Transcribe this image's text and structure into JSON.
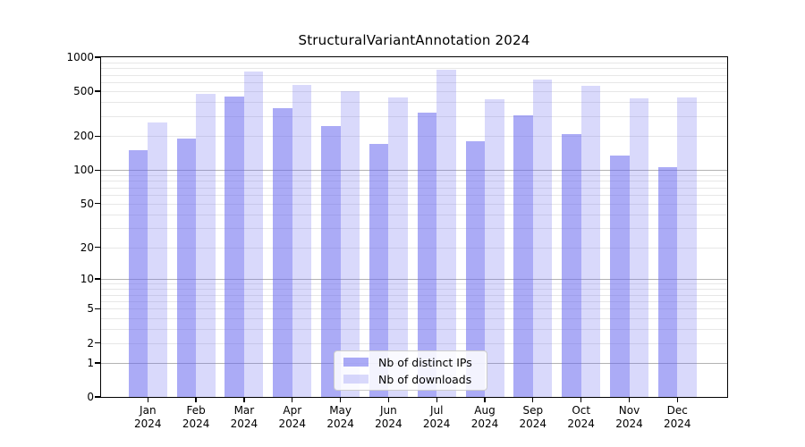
{
  "title": "StructuralVariantAnnotation 2024",
  "chart_data": {
    "type": "bar",
    "title": "StructuralVariantAnnotation 2024",
    "xlabel": "",
    "ylabel": "",
    "year_label": "2024",
    "categories": [
      "Jan",
      "Feb",
      "Mar",
      "Apr",
      "May",
      "Jun",
      "Jul",
      "Aug",
      "Sep",
      "Oct",
      "Nov",
      "Dec"
    ],
    "series": [
      {
        "name": "Nb of distinct IPs",
        "color": "rgba(102,102,238,0.55)",
        "solid_hex": "#ababf7",
        "values": [
          150,
          190,
          450,
          355,
          245,
          170,
          325,
          180,
          305,
          210,
          135,
          106
        ]
      },
      {
        "name": "Nb of downloads",
        "color": "rgba(102,102,238,0.25)",
        "solid_hex": "#d9d9fb",
        "values": [
          265,
          475,
          750,
          570,
          500,
          440,
          770,
          425,
          640,
          555,
          430,
          440
        ]
      }
    ],
    "yscale": "log1p",
    "ylim": [
      0,
      1000
    ],
    "yticks": [
      1000,
      500,
      200,
      100,
      50,
      20,
      10,
      5,
      2,
      1,
      0
    ],
    "ytick_labels": [
      "1000",
      "500",
      "200",
      "100",
      "50",
      "20",
      "10",
      "5",
      "2",
      "1",
      "0"
    ],
    "grid": "on",
    "legend_position": "lower center"
  }
}
